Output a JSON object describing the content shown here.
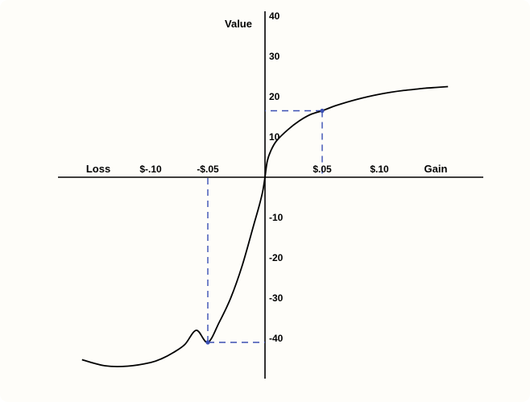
{
  "chart_data": {
    "type": "line",
    "title": "",
    "xlabel_left": "Loss",
    "xlabel_right": "Gain",
    "ylabel": "Value",
    "x_ticks": [
      {
        "value": -0.1,
        "label": "$-.10"
      },
      {
        "value": -0.05,
        "label": "-$.05"
      },
      {
        "value": 0.05,
        "label": "$.05"
      },
      {
        "value": 0.1,
        "label": "$.10"
      }
    ],
    "y_ticks": [
      {
        "value": 40,
        "label": "40"
      },
      {
        "value": 30,
        "label": "30"
      },
      {
        "value": 20,
        "label": "20"
      },
      {
        "value": 10,
        "label": "10"
      },
      {
        "value": -10,
        "label": "-10"
      },
      {
        "value": -20,
        "label": "-20"
      },
      {
        "value": -30,
        "label": "-30"
      },
      {
        "value": -40,
        "label": "-40"
      }
    ],
    "xlim": [
      -0.18,
      0.19
    ],
    "ylim": [
      -49,
      41
    ],
    "series": [
      {
        "x": [
          -0.16,
          -0.14,
          -0.12,
          -0.1,
          -0.09,
          -0.08,
          -0.07,
          -0.06,
          -0.05,
          -0.04,
          -0.03,
          -0.02,
          -0.01,
          -0.005,
          -0.002,
          0
        ],
        "y": [
          -45.3,
          -46.8,
          -46.9,
          -46.0,
          -45.0,
          -43.5,
          -41.5,
          -38.0,
          -41.0,
          -36.0,
          -30.0,
          -22.0,
          -12.0,
          -7.0,
          -3.5,
          0
        ],
        "color": "#000000"
      },
      {
        "x": [
          0,
          0.002,
          0.005,
          0.01,
          0.02,
          0.03,
          0.04,
          0.05,
          0.06,
          0.07,
          0.08,
          0.09,
          0.1,
          0.11,
          0.12,
          0.13,
          0.14,
          0.15,
          0.16
        ],
        "y": [
          0,
          4.0,
          6.5,
          9.0,
          11.8,
          14.0,
          15.6,
          16.5,
          17.6,
          18.5,
          19.3,
          20.0,
          20.6,
          21.1,
          21.5,
          21.8,
          22.1,
          22.3,
          22.5
        ],
        "color": "#000000"
      }
    ],
    "highlighted_points": [
      {
        "x": 0.05,
        "y": 16.5
      },
      {
        "x": -0.05,
        "y": -41.0
      }
    ],
    "guide_color": "#3a4fb3",
    "grid": false,
    "legend": "none"
  }
}
